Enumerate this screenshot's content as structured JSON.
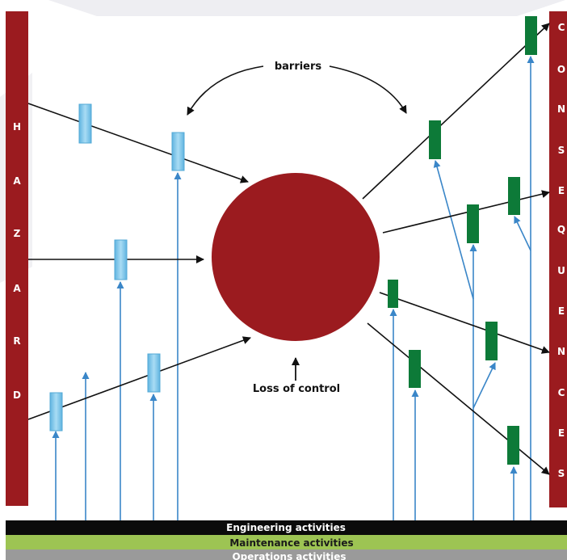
{
  "hazard_word": [
    "H",
    "A",
    "Z",
    "A",
    "R",
    "D"
  ],
  "consequences_word": [
    "C",
    "O",
    "N",
    "S",
    "E",
    "Q",
    "U",
    "E",
    "N",
    "C",
    "E",
    "S"
  ],
  "labels": {
    "barriers": "barriers",
    "loss_of_control": "Loss of control"
  },
  "activity_bars": [
    {
      "label": "Engineering activities",
      "color": "#0b0b0b",
      "text_color": "#ffffff"
    },
    {
      "label": "Maintenance activities",
      "color": "#9dc453",
      "text_color": "#111111"
    },
    {
      "label": "Operations activities",
      "color": "#9a9a9a",
      "text_color": "#ffffff"
    }
  ],
  "colors": {
    "hazard_bar": "#9b1b1f",
    "consequence_bar": "#9b1b1f",
    "loss_circle": "#9b1b1f",
    "prevention_barrier": "#8fd0ef",
    "prevention_barrier_edge": "#53a9d6",
    "mitigation_barrier": "#0d7a38",
    "support_arrow": "#3a86c8",
    "threat_arrow": "#111111",
    "background_fade": "#e9e9ee"
  },
  "icons": {
    "arrowhead": "arrowhead-icon"
  }
}
